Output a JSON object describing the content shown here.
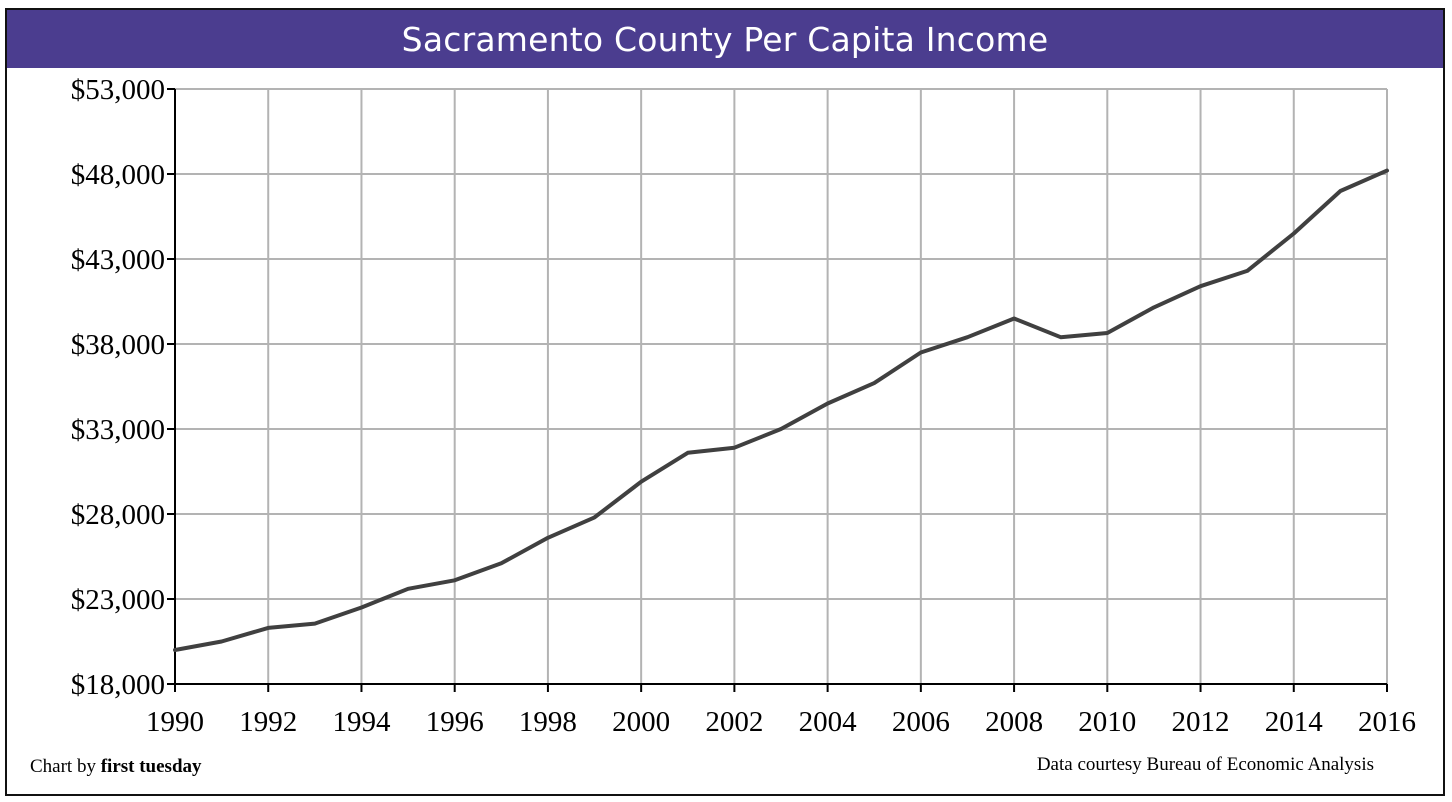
{
  "chart_data": {
    "type": "line",
    "title": "Sacramento County Per Capita Income",
    "x": [
      1990,
      1991,
      1992,
      1993,
      1994,
      1995,
      1996,
      1997,
      1998,
      1999,
      2000,
      2001,
      2002,
      2003,
      2004,
      2005,
      2006,
      2007,
      2008,
      2009,
      2010,
      2011,
      2012,
      2013,
      2014,
      2015,
      2016
    ],
    "series": [
      {
        "values": [
          20000,
          20500,
          21300,
          21550,
          22500,
          23600,
          24100,
          25100,
          26600,
          27800,
          29900,
          31600,
          31900,
          33000,
          34500,
          35700,
          37500,
          38400,
          39500,
          38400,
          38650,
          40150,
          41400,
          42300,
          44500,
          47000,
          48200
        ]
      }
    ],
    "xticks": [
      "1990",
      "1992",
      "1994",
      "1996",
      "1998",
      "2000",
      "2002",
      "2004",
      "2006",
      "2008",
      "2010",
      "2012",
      "2014",
      "2016"
    ],
    "yticks": [
      "$18,000",
      "$23,000",
      "$28,000",
      "$33,000",
      "$38,000",
      "$43,000",
      "$48,000",
      "$53,000"
    ],
    "ylim": [
      18000,
      53000
    ],
    "xlim": [
      1990,
      2016
    ],
    "grid": true,
    "xlabel": "",
    "ylabel": "",
    "colors": {
      "title_bar": "#4b3d8f",
      "line": "#404040",
      "grid": "#b3b3b3"
    }
  },
  "footer": {
    "credit_prefix": "Chart by ",
    "credit_name": "first tuesday",
    "source": "Data courtesy Bureau of Economic Analysis"
  }
}
